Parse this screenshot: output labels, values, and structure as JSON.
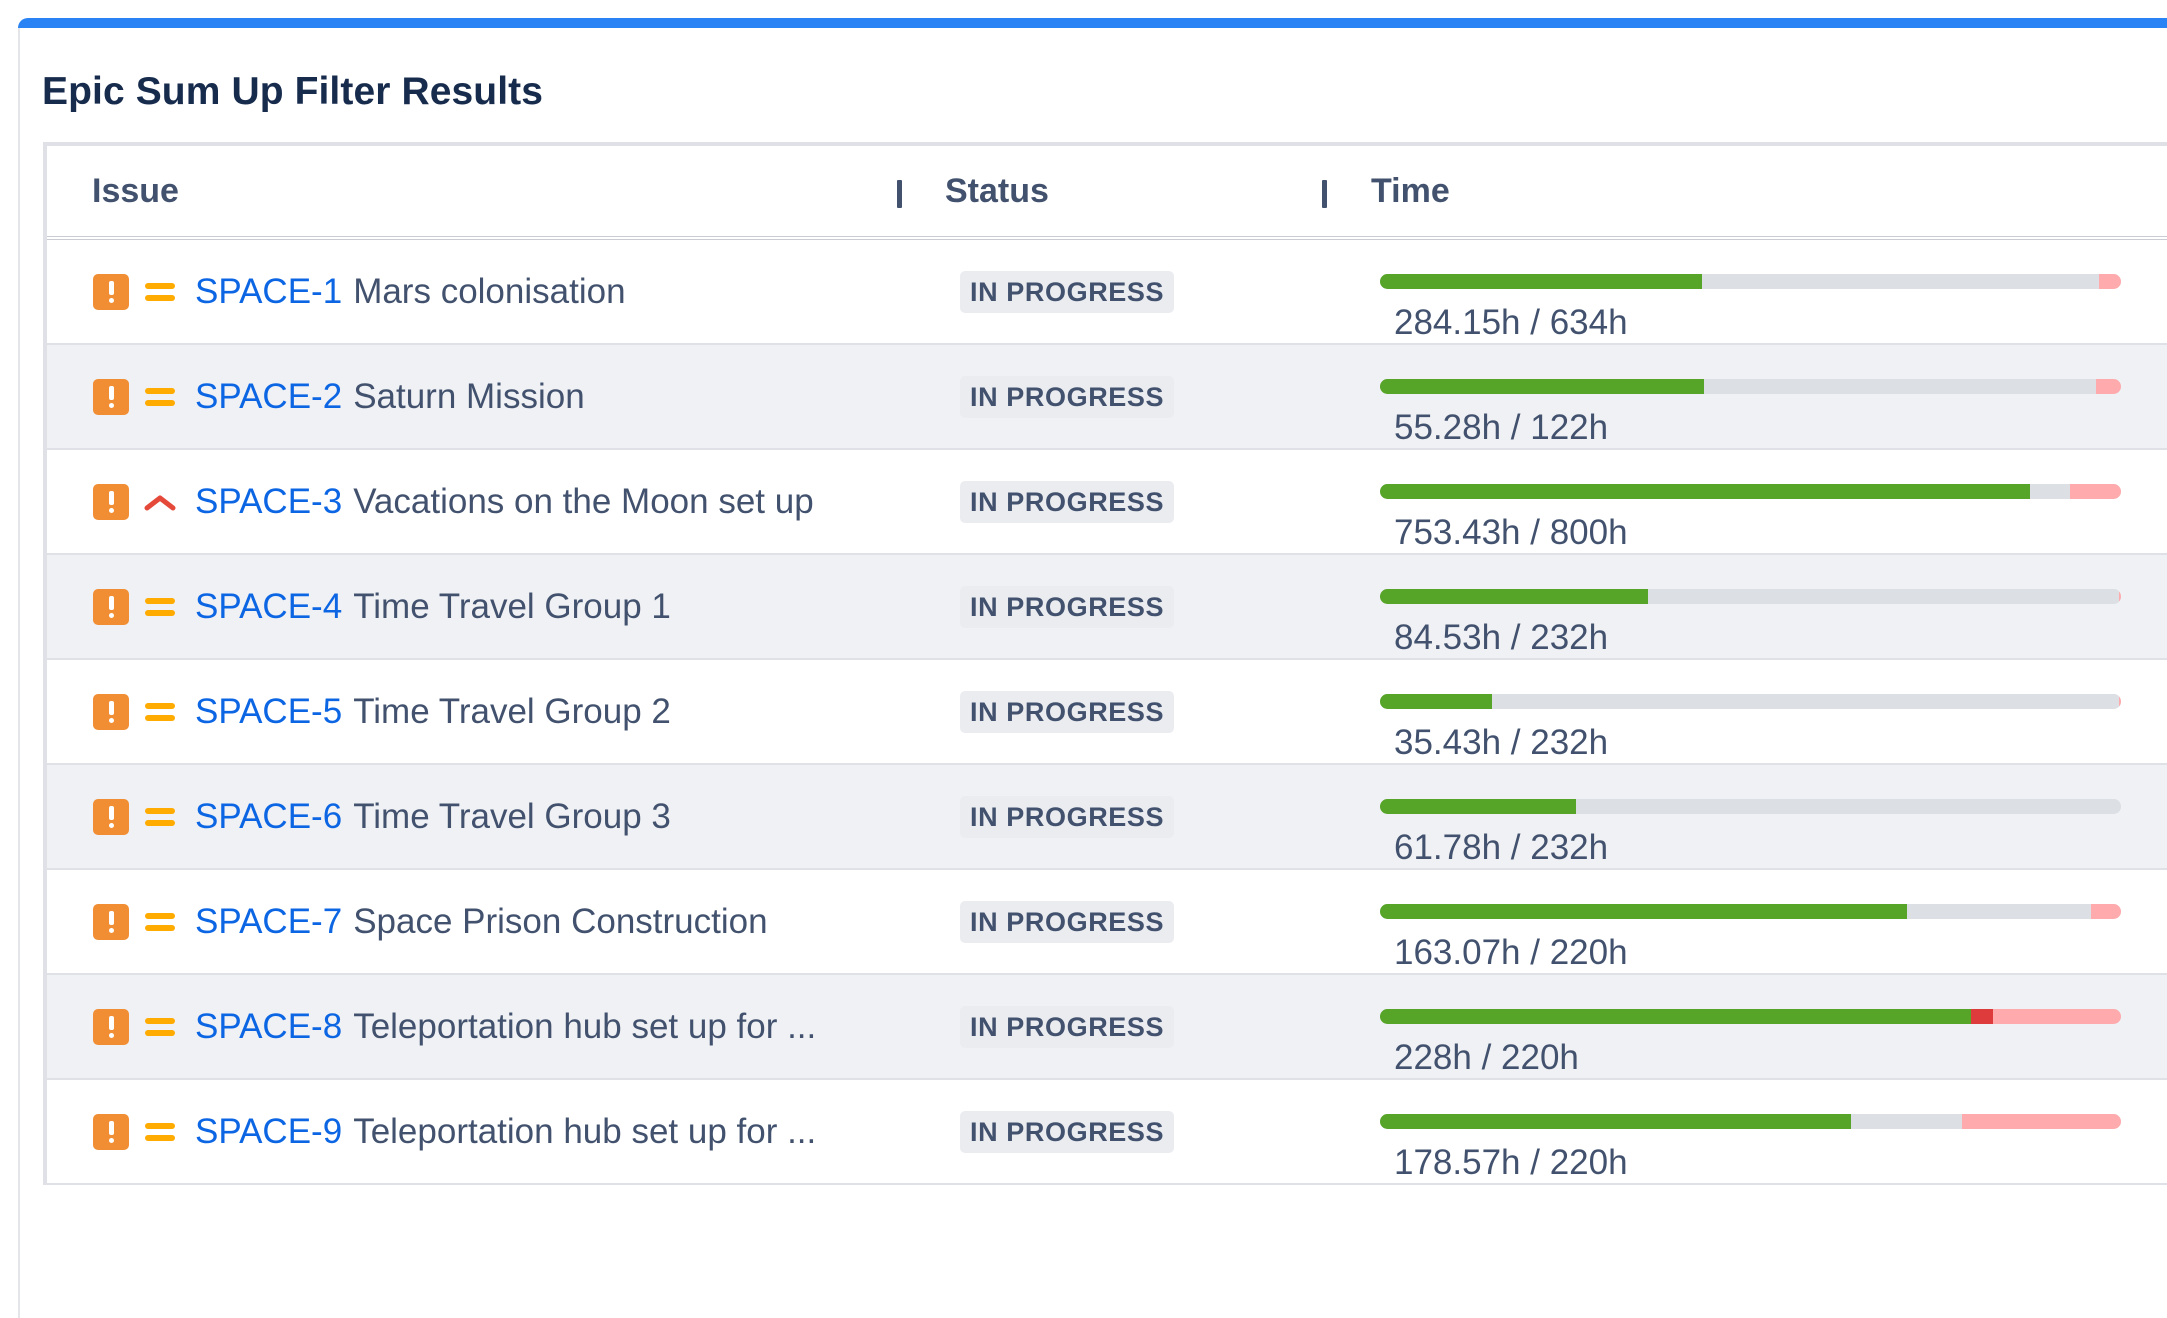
{
  "title": "Epic Sum Up Filter Results",
  "colors": {
    "accent_bar": "#2a83f5",
    "issue_key": "#0c66e4",
    "logged": "#56a428",
    "remaining": "#dcdfe4",
    "overrun": "#de3c3c",
    "over_estimate": "#ffabae",
    "issue_type_icon": "#f18e33",
    "priority_medium": "#ffab00",
    "priority_high": "#e5493a"
  },
  "table": {
    "columns": [
      {
        "label": "Issue"
      },
      {
        "label": "Status"
      },
      {
        "label": "Time"
      }
    ],
    "rows": [
      {
        "type_icon": "issue-type-exclamation-icon",
        "priority": "medium",
        "key": "SPACE-1",
        "summary": "Mars colonisation",
        "status": "IN PROGRESS",
        "time_text": "284.15h / 634h",
        "progress": {
          "logged": 0.435,
          "remaining": 0.535,
          "overrun": 0,
          "over_estimate": 0.03
        }
      },
      {
        "type_icon": "issue-type-exclamation-icon",
        "priority": "medium",
        "key": "SPACE-2",
        "summary": "Saturn Mission",
        "status": "IN PROGRESS",
        "time_text": "55.28h / 122h",
        "progress": {
          "logged": 0.437,
          "remaining": 0.529,
          "overrun": 0,
          "over_estimate": 0.034
        }
      },
      {
        "type_icon": "issue-type-exclamation-icon",
        "priority": "high",
        "key": "SPACE-3",
        "summary": "Vacations on the Moon set up",
        "status": "IN PROGRESS",
        "time_text": "753.43h / 800h",
        "progress": {
          "logged": 0.877,
          "remaining": 0.054,
          "overrun": 0,
          "over_estimate": 0.069
        }
      },
      {
        "type_icon": "issue-type-exclamation-icon",
        "priority": "medium",
        "key": "SPACE-4",
        "summary": "Time Travel Group 1",
        "status": "IN PROGRESS",
        "time_text": "84.53h / 232h",
        "progress": {
          "logged": 0.362,
          "remaining": 0.635,
          "overrun": 0,
          "over_estimate": 0.003
        }
      },
      {
        "type_icon": "issue-type-exclamation-icon",
        "priority": "medium",
        "key": "SPACE-5",
        "summary": "Time Travel Group 2",
        "status": "IN PROGRESS",
        "time_text": "35.43h / 232h",
        "progress": {
          "logged": 0.151,
          "remaining": 0.846,
          "overrun": 0,
          "over_estimate": 0.003
        }
      },
      {
        "type_icon": "issue-type-exclamation-icon",
        "priority": "medium",
        "key": "SPACE-6",
        "summary": "Time Travel Group 3",
        "status": "IN PROGRESS",
        "time_text": "61.78h / 232h",
        "progress": {
          "logged": 0.265,
          "remaining": 0.735,
          "overrun": 0,
          "over_estimate": 0
        }
      },
      {
        "type_icon": "issue-type-exclamation-icon",
        "priority": "medium",
        "key": "SPACE-7",
        "summary": "Space Prison Construction",
        "status": "IN PROGRESS",
        "time_text": "163.07h / 220h",
        "progress": {
          "logged": 0.711,
          "remaining": 0.248,
          "overrun": 0,
          "over_estimate": 0.041
        }
      },
      {
        "type_icon": "issue-type-exclamation-icon",
        "priority": "medium",
        "key": "SPACE-8",
        "summary": "Teleportation hub set up for ...",
        "status": "IN PROGRESS",
        "time_text": "228h / 220h",
        "progress": {
          "logged": 0.797,
          "remaining": 0,
          "overrun": 0.03,
          "over_estimate": 0.173
        }
      },
      {
        "type_icon": "issue-type-exclamation-icon",
        "priority": "medium",
        "key": "SPACE-9",
        "summary": "Teleportation hub set up for ...",
        "status": "IN PROGRESS",
        "time_text": "178.57h / 220h",
        "progress": {
          "logged": 0.636,
          "remaining": 0.149,
          "overrun": 0,
          "over_estimate": 0.215
        }
      }
    ]
  }
}
